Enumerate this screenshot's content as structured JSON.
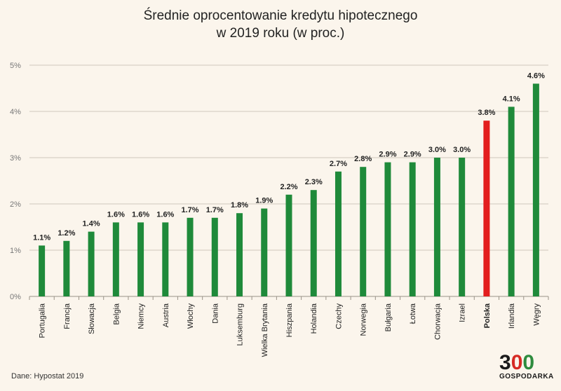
{
  "title_line1": "Średnie oprocentowanie kredytu hipotecznego",
  "title_line2": "w 2019 roku (w proc.)",
  "source": "Dane: Hypostat 2019",
  "logo": {
    "number": [
      "3",
      "0",
      "0"
    ],
    "text": "GOSPODARKA"
  },
  "colors": {
    "bar": "#1f8a3a",
    "highlight": "#e31e1e",
    "grid": "#cfc8bd",
    "background": "#fbf5ec"
  },
  "chart_data": {
    "type": "bar",
    "categories": [
      "Portugalia",
      "Francja",
      "Słowacja",
      "Belgia",
      "Niemcy",
      "Austria",
      "Włochy",
      "Dania",
      "Luksemburg",
      "Wielka Brytania",
      "Hiszpania",
      "Holandia",
      "Czechy",
      "Norwegia",
      "Bułgaria",
      "Łotwa",
      "Chorwacja",
      "Izrael",
      "Polska",
      "Irlandia",
      "Węgry"
    ],
    "values": [
      1.1,
      1.2,
      1.4,
      1.6,
      1.6,
      1.6,
      1.7,
      1.7,
      1.8,
      1.9,
      2.2,
      2.3,
      2.7,
      2.8,
      2.9,
      2.9,
      3.0,
      3.0,
      3.8,
      4.1,
      4.6
    ],
    "data_labels": [
      "1.1%",
      "1.2%",
      "1.4%",
      "1.6%",
      "1.6%",
      "1.6%",
      "1.7%",
      "1.7%",
      "1.8%",
      "1.9%",
      "2.2%",
      "2.3%",
      "2.7%",
      "2.8%",
      "2.9%",
      "2.9%",
      "3.0%",
      "3.0%",
      "3.8%",
      "4.1%",
      "4.6%"
    ],
    "highlight": "Polska",
    "yticks": [
      "0%",
      "1%",
      "2%",
      "3%",
      "4%",
      "5%"
    ],
    "ylim": [
      0,
      5
    ],
    "grid": true
  }
}
